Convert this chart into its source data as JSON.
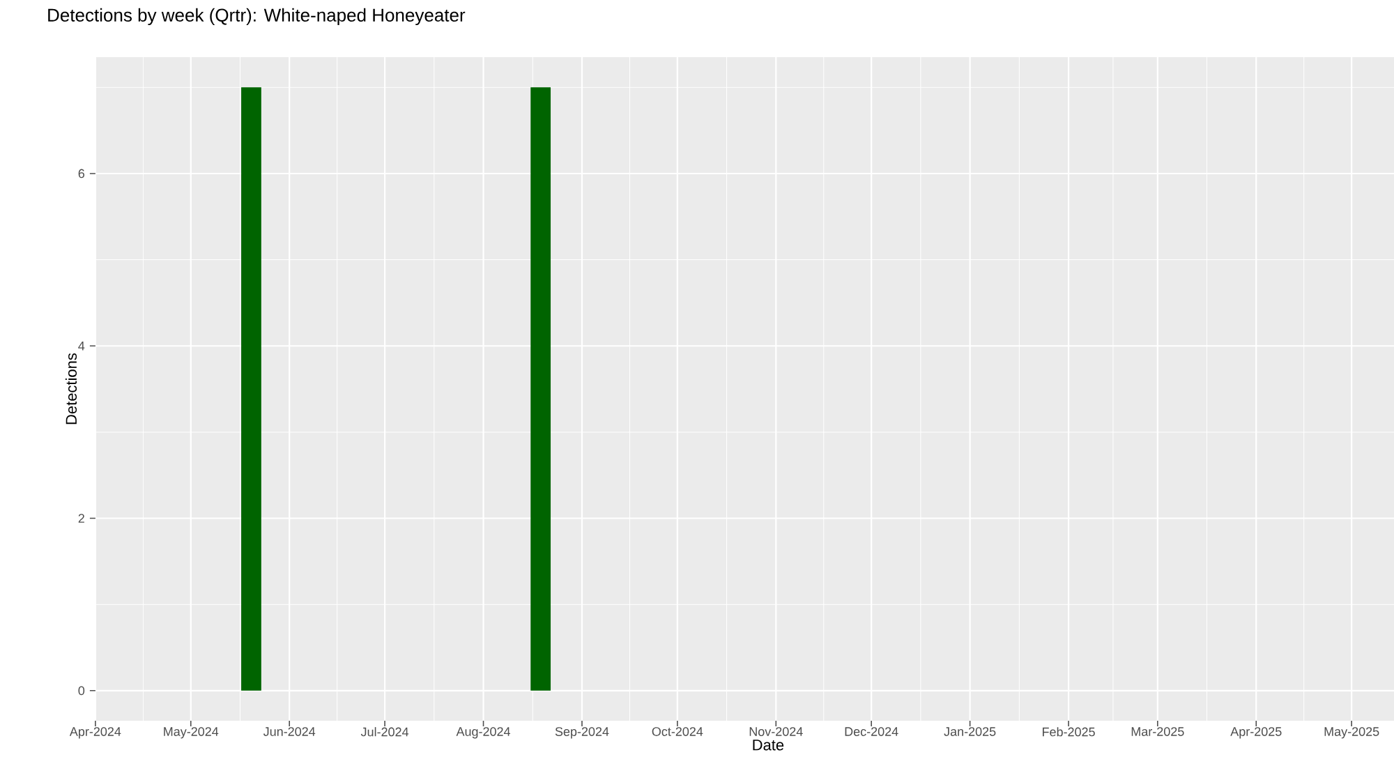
{
  "chart_data": {
    "type": "bar",
    "title": "Detections by week (Qrtr): White-naped Honeyeater",
    "xlabel": "Date",
    "ylabel": "Detections",
    "x": [
      "2024-05-20",
      "2024-08-19"
    ],
    "values": [
      7,
      7
    ],
    "color": "#006400",
    "xlim": [
      "2024-04-01",
      "2025-05-29"
    ],
    "xticks": [
      {
        "value": "2024-04-01",
        "label": "Apr-2024"
      },
      {
        "value": "2024-05-01",
        "label": "May-2024"
      },
      {
        "value": "2024-06-01",
        "label": "Jun-2024"
      },
      {
        "value": "2024-07-01",
        "label": "Jul-2024"
      },
      {
        "value": "2024-08-01",
        "label": "Aug-2024"
      },
      {
        "value": "2024-09-01",
        "label": "Sep-2024"
      },
      {
        "value": "2024-10-01",
        "label": "Oct-2024"
      },
      {
        "value": "2024-11-01",
        "label": "Nov-2024"
      },
      {
        "value": "2024-12-01",
        "label": "Dec-2024"
      },
      {
        "value": "2025-01-01",
        "label": "Jan-2025"
      },
      {
        "value": "2025-02-01",
        "label": "Feb-2025"
      },
      {
        "value": "2025-03-01",
        "label": "Mar-2025"
      },
      {
        "value": "2025-04-01",
        "label": "Apr-2025"
      },
      {
        "value": "2025-05-01",
        "label": "May-2025"
      }
    ],
    "ylim": [
      -0.35,
      7.35
    ],
    "yticks": [
      0,
      2,
      4,
      6
    ],
    "grid": true
  }
}
